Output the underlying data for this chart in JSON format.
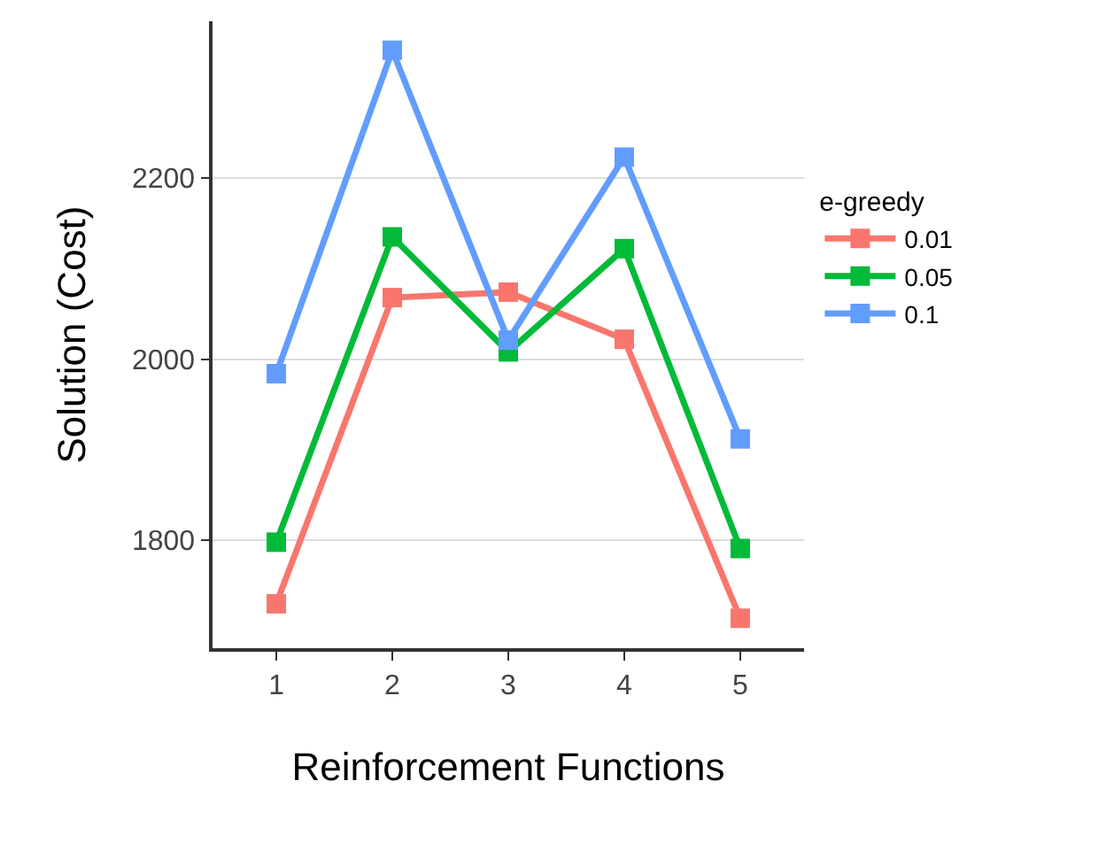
{
  "chart_data": {
    "type": "line",
    "xlabel": "Reinforcement Functions",
    "ylabel": "Solution (Cost)",
    "legend_title": "e-greedy",
    "categories": [
      "1",
      "2",
      "3",
      "4",
      "5"
    ],
    "series": [
      {
        "name": "0.01",
        "color": "#f8766d",
        "values": [
          1730,
          2068,
          2074,
          2022,
          1714
        ]
      },
      {
        "name": "0.05",
        "color": "#00ba38",
        "values": [
          1798,
          2135,
          2008,
          2122,
          1791
        ]
      },
      {
        "name": "0.1",
        "color": "#619cff",
        "values": [
          1984,
          2341,
          2021,
          2223,
          1912
        ]
      }
    ],
    "ylim": [
      1681,
      2373
    ],
    "yticks": [
      1800,
      2000,
      2200
    ],
    "grid": "y",
    "legend": "right",
    "marker": "square",
    "line_style": "solid"
  }
}
